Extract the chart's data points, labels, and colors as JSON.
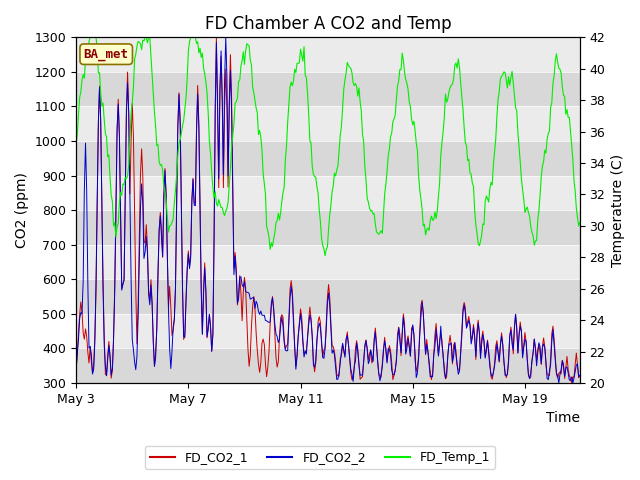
{
  "title": "FD Chamber A CO2 and Temp",
  "xlabel": "Time",
  "ylabel_left": "CO2 (ppm)",
  "ylabel_right": "Temperature (C)",
  "ylim_left": [
    300,
    1300
  ],
  "ylim_right": [
    20,
    42
  ],
  "x_tick_labels": [
    "May 3",
    "May 7",
    "May 11",
    "May 15",
    "May 19"
  ],
  "background_color": "#ffffff",
  "plot_bg_light": "#ebebeb",
  "plot_bg_dark": "#d8d8d8",
  "label_box_text": "BA_met",
  "label_box_color": "#ffffcc",
  "label_box_edge": "#8b7000",
  "line_colors": {
    "co2_1": "#cc0000",
    "co2_2": "#0000cc",
    "temp": "#00ee00"
  },
  "legend_labels": [
    "FD_CO2_1",
    "FD_CO2_2",
    "FD_Temp_1"
  ],
  "title_fontsize": 12,
  "axis_fontsize": 10,
  "tick_fontsize": 9,
  "legend_fontsize": 9
}
